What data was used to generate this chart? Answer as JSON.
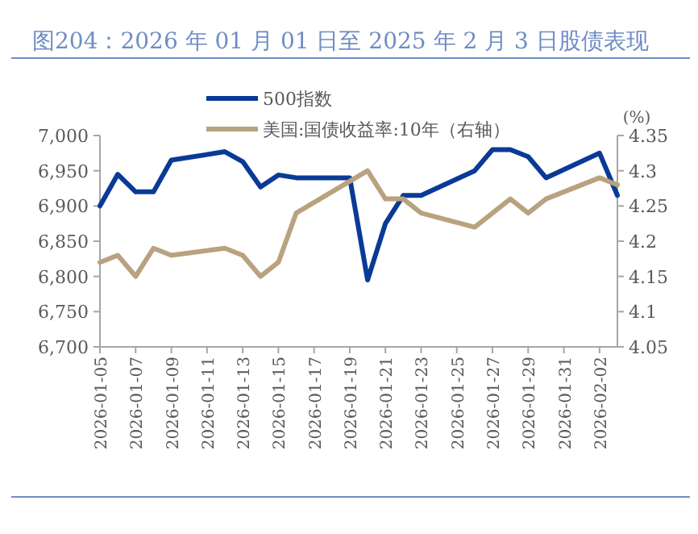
{
  "chart_data": {
    "type": "line",
    "title": "图204：2026 年 01 月 01 日至 2025 年 2 月 3 日股债表现",
    "y2label": "(%)",
    "legend": "top",
    "x": [
      "2026-01-05",
      "2026-01-06",
      "2026-01-07",
      "2026-01-08",
      "2026-01-09",
      "2026-01-12",
      "2026-01-13",
      "2026-01-14",
      "2026-01-15",
      "2026-01-16",
      "2026-01-19",
      "2026-01-20",
      "2026-01-21",
      "2026-01-22",
      "2026-01-23",
      "2026-01-26",
      "2026-01-27",
      "2026-01-28",
      "2026-01-29",
      "2026-01-30",
      "2026-02-02",
      "2026-02-03"
    ],
    "series": [
      {
        "name": "500指数",
        "color": "#0a3a96",
        "values": [
          6900,
          6945,
          6920,
          6920,
          6965,
          6977,
          6963,
          6927,
          6944,
          6940,
          6940,
          6795,
          6875,
          6915,
          6915,
          6950,
          6980,
          6980,
          6970,
          6940,
          6975,
          6915
        ]
      },
      {
        "name": "美国:国债收益率:10年（右轴）",
        "color": "#b9a27f",
        "axis": "y2",
        "values": [
          4.17,
          4.18,
          4.15,
          4.19,
          4.18,
          4.19,
          4.18,
          4.15,
          4.17,
          4.24,
          null,
          4.3,
          4.26,
          4.26,
          4.24,
          4.22,
          4.24,
          4.26,
          4.24,
          4.26,
          4.29,
          4.28
        ]
      }
    ],
    "xlim": [
      "2026-01-05",
      "2026-02-03"
    ],
    "xticks": [
      "2026-01-05",
      "2026-01-07",
      "2026-01-09",
      "2026-01-11",
      "2026-01-13",
      "2026-01-15",
      "2026-01-17",
      "2026-01-19",
      "2026-01-21",
      "2026-01-23",
      "2026-01-25",
      "2026-01-27",
      "2026-01-29",
      "2026-01-31",
      "2026-02-02"
    ],
    "ylim": [
      6700,
      7000
    ],
    "yticks": [
      {
        "value": 6700,
        "label": "6,700"
      },
      {
        "value": 6750,
        "label": "6,750"
      },
      {
        "value": 6800,
        "label": "6,800"
      },
      {
        "value": 6850,
        "label": "6,850"
      },
      {
        "value": 6900,
        "label": "6,900"
      },
      {
        "value": 6950,
        "label": "6,950"
      },
      {
        "value": 7000,
        "label": "7,000"
      }
    ],
    "y2lim": [
      4.05,
      4.35
    ],
    "y2ticks": [
      4.05,
      4.1,
      4.15,
      4.2,
      4.25,
      4.3,
      4.35
    ]
  }
}
